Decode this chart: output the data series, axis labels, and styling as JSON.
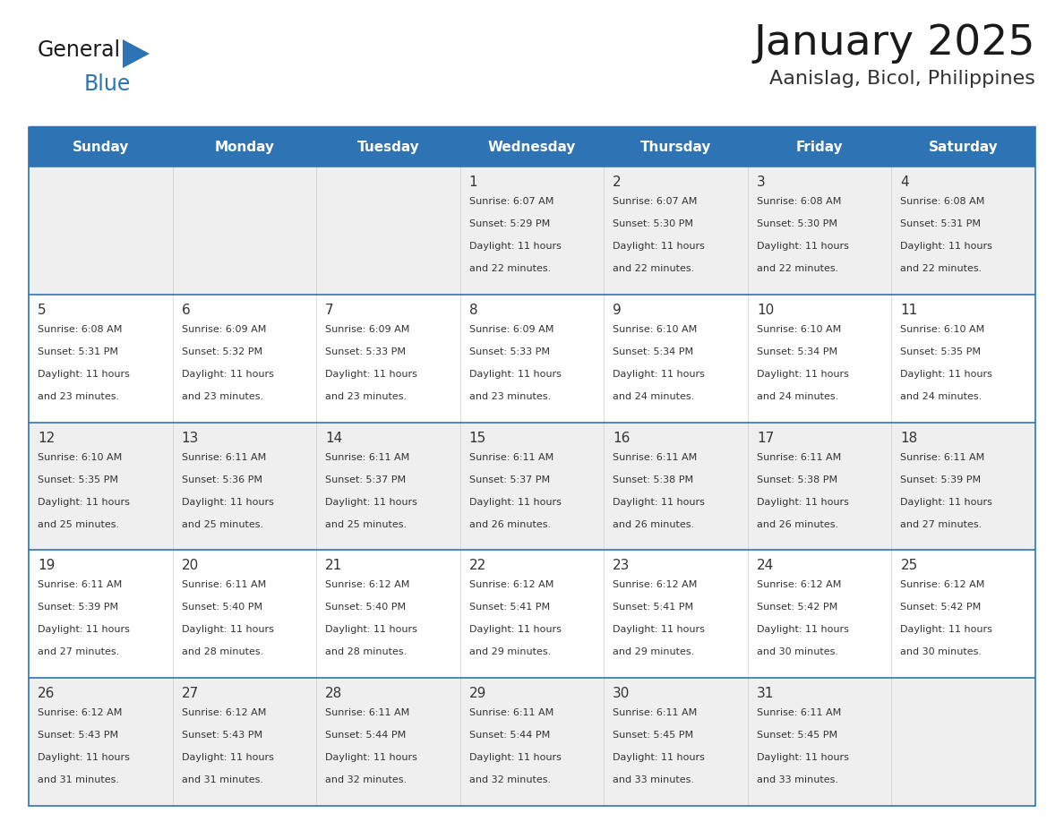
{
  "title": "January 2025",
  "subtitle": "Aanislag, Bicol, Philippines",
  "header_color": "#2E74B5",
  "header_text_color": "#FFFFFF",
  "row_bg_even": "#EFEFEF",
  "row_bg_odd": "#FFFFFF",
  "border_color": "#2E74B5",
  "text_color": "#333333",
  "days_of_week": [
    "Sunday",
    "Monday",
    "Tuesday",
    "Wednesday",
    "Thursday",
    "Friday",
    "Saturday"
  ],
  "calendar_data": [
    [
      {
        "day": "",
        "sunrise": "",
        "sunset": "",
        "daylight": ""
      },
      {
        "day": "",
        "sunrise": "",
        "sunset": "",
        "daylight": ""
      },
      {
        "day": "",
        "sunrise": "",
        "sunset": "",
        "daylight": ""
      },
      {
        "day": "1",
        "sunrise": "6:07 AM",
        "sunset": "5:29 PM",
        "daylight": "11 hours and 22 minutes."
      },
      {
        "day": "2",
        "sunrise": "6:07 AM",
        "sunset": "5:30 PM",
        "daylight": "11 hours and 22 minutes."
      },
      {
        "day": "3",
        "sunrise": "6:08 AM",
        "sunset": "5:30 PM",
        "daylight": "11 hours and 22 minutes."
      },
      {
        "day": "4",
        "sunrise": "6:08 AM",
        "sunset": "5:31 PM",
        "daylight": "11 hours and 22 minutes."
      }
    ],
    [
      {
        "day": "5",
        "sunrise": "6:08 AM",
        "sunset": "5:31 PM",
        "daylight": "11 hours and 23 minutes."
      },
      {
        "day": "6",
        "sunrise": "6:09 AM",
        "sunset": "5:32 PM",
        "daylight": "11 hours and 23 minutes."
      },
      {
        "day": "7",
        "sunrise": "6:09 AM",
        "sunset": "5:33 PM",
        "daylight": "11 hours and 23 minutes."
      },
      {
        "day": "8",
        "sunrise": "6:09 AM",
        "sunset": "5:33 PM",
        "daylight": "11 hours and 23 minutes."
      },
      {
        "day": "9",
        "sunrise": "6:10 AM",
        "sunset": "5:34 PM",
        "daylight": "11 hours and 24 minutes."
      },
      {
        "day": "10",
        "sunrise": "6:10 AM",
        "sunset": "5:34 PM",
        "daylight": "11 hours and 24 minutes."
      },
      {
        "day": "11",
        "sunrise": "6:10 AM",
        "sunset": "5:35 PM",
        "daylight": "11 hours and 24 minutes."
      }
    ],
    [
      {
        "day": "12",
        "sunrise": "6:10 AM",
        "sunset": "5:35 PM",
        "daylight": "11 hours and 25 minutes."
      },
      {
        "day": "13",
        "sunrise": "6:11 AM",
        "sunset": "5:36 PM",
        "daylight": "11 hours and 25 minutes."
      },
      {
        "day": "14",
        "sunrise": "6:11 AM",
        "sunset": "5:37 PM",
        "daylight": "11 hours and 25 minutes."
      },
      {
        "day": "15",
        "sunrise": "6:11 AM",
        "sunset": "5:37 PM",
        "daylight": "11 hours and 26 minutes."
      },
      {
        "day": "16",
        "sunrise": "6:11 AM",
        "sunset": "5:38 PM",
        "daylight": "11 hours and 26 minutes."
      },
      {
        "day": "17",
        "sunrise": "6:11 AM",
        "sunset": "5:38 PM",
        "daylight": "11 hours and 26 minutes."
      },
      {
        "day": "18",
        "sunrise": "6:11 AM",
        "sunset": "5:39 PM",
        "daylight": "11 hours and 27 minutes."
      }
    ],
    [
      {
        "day": "19",
        "sunrise": "6:11 AM",
        "sunset": "5:39 PM",
        "daylight": "11 hours and 27 minutes."
      },
      {
        "day": "20",
        "sunrise": "6:11 AM",
        "sunset": "5:40 PM",
        "daylight": "11 hours and 28 minutes."
      },
      {
        "day": "21",
        "sunrise": "6:12 AM",
        "sunset": "5:40 PM",
        "daylight": "11 hours and 28 minutes."
      },
      {
        "day": "22",
        "sunrise": "6:12 AM",
        "sunset": "5:41 PM",
        "daylight": "11 hours and 29 minutes."
      },
      {
        "day": "23",
        "sunrise": "6:12 AM",
        "sunset": "5:41 PM",
        "daylight": "11 hours and 29 minutes."
      },
      {
        "day": "24",
        "sunrise": "6:12 AM",
        "sunset": "5:42 PM",
        "daylight": "11 hours and 30 minutes."
      },
      {
        "day": "25",
        "sunrise": "6:12 AM",
        "sunset": "5:42 PM",
        "daylight": "11 hours and 30 minutes."
      }
    ],
    [
      {
        "day": "26",
        "sunrise": "6:12 AM",
        "sunset": "5:43 PM",
        "daylight": "11 hours and 31 minutes."
      },
      {
        "day": "27",
        "sunrise": "6:12 AM",
        "sunset": "5:43 PM",
        "daylight": "11 hours and 31 minutes."
      },
      {
        "day": "28",
        "sunrise": "6:11 AM",
        "sunset": "5:44 PM",
        "daylight": "11 hours and 32 minutes."
      },
      {
        "day": "29",
        "sunrise": "6:11 AM",
        "sunset": "5:44 PM",
        "daylight": "11 hours and 32 minutes."
      },
      {
        "day": "30",
        "sunrise": "6:11 AM",
        "sunset": "5:45 PM",
        "daylight": "11 hours and 33 minutes."
      },
      {
        "day": "31",
        "sunrise": "6:11 AM",
        "sunset": "5:45 PM",
        "daylight": "11 hours and 33 minutes."
      },
      {
        "day": "",
        "sunrise": "",
        "sunset": "",
        "daylight": ""
      }
    ]
  ],
  "logo_text_general": "General",
  "logo_text_blue": "Blue",
  "logo_color_general": "#1a1a1a",
  "logo_color_blue": "#2E74B5",
  "fig_width": 11.88,
  "fig_height": 9.18,
  "dpi": 100
}
